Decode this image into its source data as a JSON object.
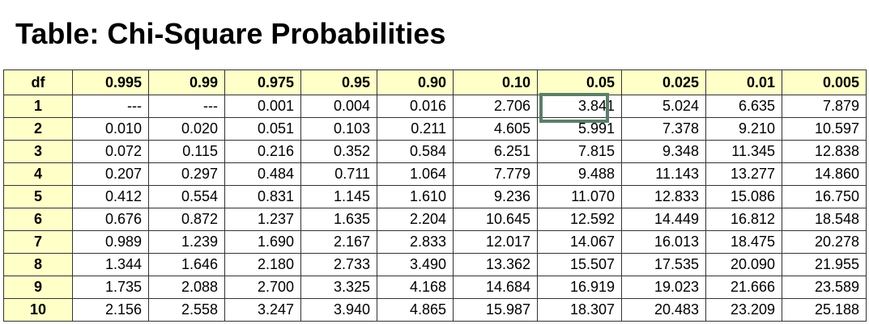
{
  "title": "Table: Chi-Square Probabilities",
  "table": {
    "row_header": "df",
    "columns": [
      "0.995",
      "0.99",
      "0.975",
      "0.95",
      "0.90",
      "0.10",
      "0.05",
      "0.025",
      "0.01",
      "0.005"
    ],
    "rows": [
      {
        "df": "1",
        "values": [
          "---",
          "---",
          "0.001",
          "0.004",
          "0.016",
          "2.706",
          "3.841",
          "5.024",
          "6.635",
          "7.879"
        ]
      },
      {
        "df": "2",
        "values": [
          "0.010",
          "0.020",
          "0.051",
          "0.103",
          "0.211",
          "4.605",
          "5.991",
          "7.378",
          "9.210",
          "10.597"
        ]
      },
      {
        "df": "3",
        "values": [
          "0.072",
          "0.115",
          "0.216",
          "0.352",
          "0.584",
          "6.251",
          "7.815",
          "9.348",
          "11.345",
          "12.838"
        ]
      },
      {
        "df": "4",
        "values": [
          "0.207",
          "0.297",
          "0.484",
          "0.711",
          "1.064",
          "7.779",
          "9.488",
          "11.143",
          "13.277",
          "14.860"
        ]
      },
      {
        "df": "5",
        "values": [
          "0.412",
          "0.554",
          "0.831",
          "1.145",
          "1.610",
          "9.236",
          "11.070",
          "12.833",
          "15.086",
          "16.750"
        ]
      },
      {
        "df": "6",
        "values": [
          "0.676",
          "0.872",
          "1.237",
          "1.635",
          "2.204",
          "10.645",
          "12.592",
          "14.449",
          "16.812",
          "18.548"
        ]
      },
      {
        "df": "7",
        "values": [
          "0.989",
          "1.239",
          "1.690",
          "2.167",
          "2.833",
          "12.017",
          "14.067",
          "16.013",
          "18.475",
          "20.278"
        ]
      },
      {
        "df": "8",
        "values": [
          "1.344",
          "1.646",
          "2.180",
          "2.733",
          "3.490",
          "13.362",
          "15.507",
          "17.535",
          "20.090",
          "21.955"
        ]
      },
      {
        "df": "9",
        "values": [
          "1.735",
          "2.088",
          "2.700",
          "3.325",
          "4.168",
          "14.684",
          "16.919",
          "19.023",
          "21.666",
          "23.589"
        ]
      },
      {
        "df": "10",
        "values": [
          "2.156",
          "2.558",
          "3.247",
          "3.940",
          "4.865",
          "15.987",
          "18.307",
          "20.483",
          "23.209",
          "25.188"
        ]
      }
    ],
    "highlighted_cell": {
      "df": "1",
      "column": "0.05",
      "value": "3.841"
    }
  },
  "colors": {
    "header_background": "#ffffc8",
    "highlight_border": "#5b7f6a",
    "grid_line": "#333333"
  }
}
